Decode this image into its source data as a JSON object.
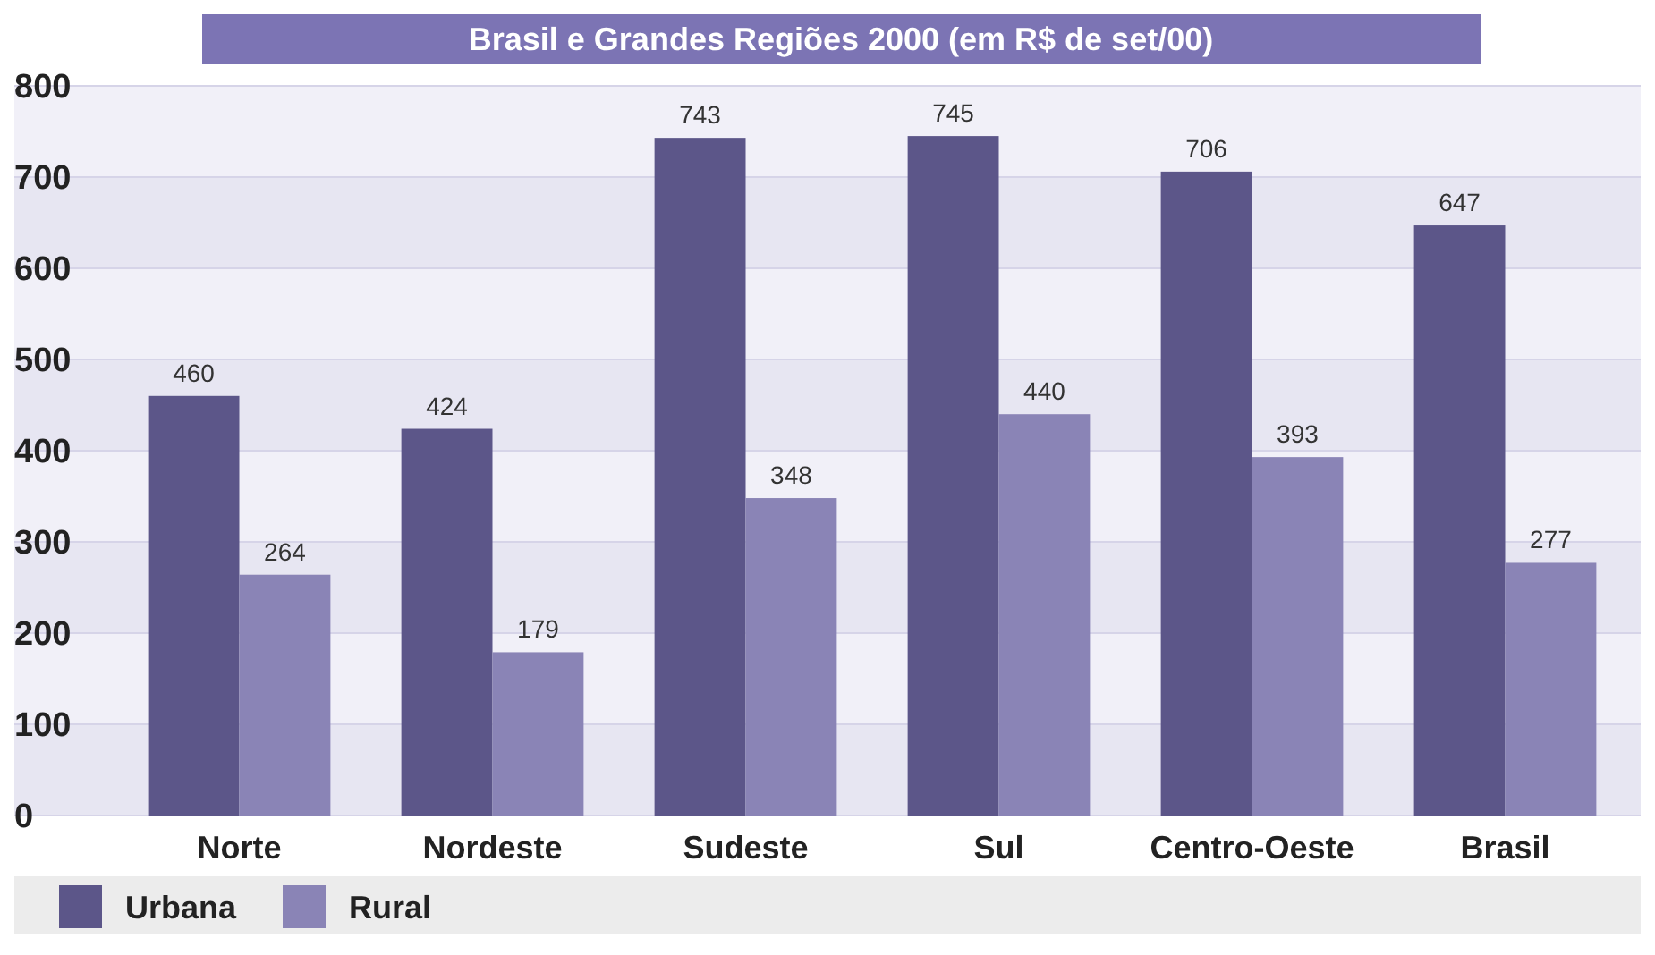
{
  "chart_data": {
    "type": "bar",
    "title": "Brasil e Grandes Regiões 2000 (em R$ de set/00)",
    "categories": [
      "Norte",
      "Nordeste",
      "Sudeste",
      "Sul",
      "Centro-Oeste",
      "Brasil"
    ],
    "series": [
      {
        "name": "Urbana",
        "color": "#5c5689",
        "values": [
          460,
          424,
          743,
          745,
          706,
          647
        ]
      },
      {
        "name": "Rural",
        "color": "#8a84b6",
        "values": [
          264,
          179,
          348,
          440,
          393,
          277
        ]
      }
    ],
    "ylim": [
      0,
      800
    ],
    "yticks": [
      0,
      100,
      200,
      300,
      400,
      500,
      600,
      700,
      800
    ],
    "grid": "y",
    "data_labels": true,
    "legend": "bottom"
  }
}
